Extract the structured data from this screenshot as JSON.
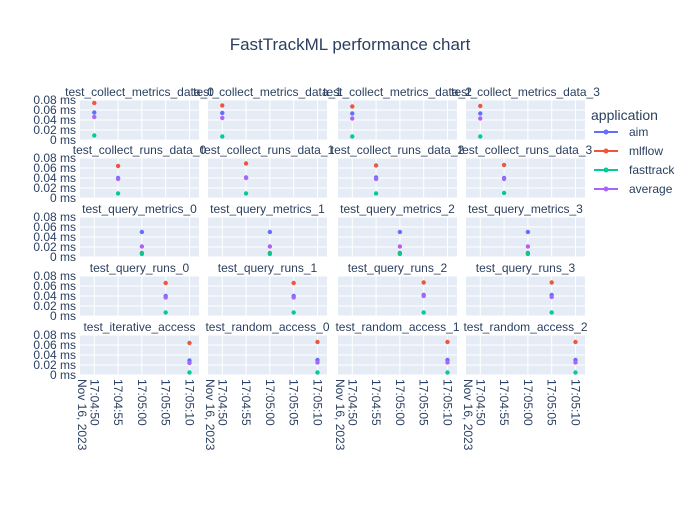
{
  "chart_data": {
    "type": "scatter",
    "title": "FastTrackML performance chart",
    "legend": {
      "title": "application",
      "placement": "top-right",
      "entries": [
        {
          "name": "aim",
          "color": "#636efa"
        },
        {
          "name": "mlflow",
          "color": "#ef553b"
        },
        {
          "name": "fasttrack",
          "color": "#00cc96"
        },
        {
          "name": "average",
          "color": "#ab63fa"
        }
      ]
    },
    "background": "#e5ecf6",
    "grid": true,
    "y_axis": {
      "range": [
        0,
        0.08
      ],
      "ticks": [
        "0 ms",
        "0.02 ms",
        "0.04 ms",
        "0.06 ms",
        "0.08 ms"
      ],
      "tick_values": [
        0,
        0.02,
        0.04,
        0.06,
        0.08
      ]
    },
    "x_axis": {
      "range": [
        "2023-11-16 17:04:47",
        "2023-11-16 17:05:12"
      ],
      "ticks": [
        "17:04:50",
        "17:04:55",
        "17:05:00",
        "17:05:05",
        "17:05:10"
      ],
      "tick_values": [
        "2023-11-16 17:04:50",
        "2023-11-16 17:04:55",
        "2023-11-16 17:05:00",
        "2023-11-16 17:05:05",
        "2023-11-16 17:05:10"
      ],
      "date_label": "Nov 16, 2023"
    },
    "panels": [
      {
        "title": "test_collect_metrics_data_0",
        "row": 0,
        "col": 0,
        "x": "2023-11-16 17:04:50",
        "values": {
          "aim": 0.055,
          "mlflow": 0.074,
          "fasttrack": 0.009,
          "average": 0.046
        }
      },
      {
        "title": "test_collect_metrics_data_1",
        "row": 0,
        "col": 1,
        "x": "2023-11-16 17:04:50",
        "values": {
          "aim": 0.054,
          "mlflow": 0.069,
          "fasttrack": 0.007,
          "average": 0.044
        }
      },
      {
        "title": "test_collect_metrics_data_2",
        "row": 0,
        "col": 2,
        "x": "2023-11-16 17:04:50",
        "values": {
          "aim": 0.053,
          "mlflow": 0.067,
          "fasttrack": 0.007,
          "average": 0.043
        }
      },
      {
        "title": "test_collect_metrics_data_3",
        "row": 0,
        "col": 3,
        "x": "2023-11-16 17:04:50",
        "values": {
          "aim": 0.053,
          "mlflow": 0.068,
          "fasttrack": 0.007,
          "average": 0.043
        }
      },
      {
        "title": "test_collect_runs_data_0",
        "row": 1,
        "col": 0,
        "x": "2023-11-16 17:04:55",
        "values": {
          "aim": 0.04,
          "mlflow": 0.064,
          "fasttrack": 0.009,
          "average": 0.038
        }
      },
      {
        "title": "test_collect_runs_data_1",
        "row": 1,
        "col": 1,
        "x": "2023-11-16 17:04:55",
        "values": {
          "aim": 0.041,
          "mlflow": 0.069,
          "fasttrack": 0.009,
          "average": 0.04
        }
      },
      {
        "title": "test_collect_runs_data_2",
        "row": 1,
        "col": 2,
        "x": "2023-11-16 17:04:55",
        "values": {
          "aim": 0.041,
          "mlflow": 0.065,
          "fasttrack": 0.009,
          "average": 0.038
        }
      },
      {
        "title": "test_collect_runs_data_3",
        "row": 1,
        "col": 3,
        "x": "2023-11-16 17:04:55",
        "values": {
          "aim": 0.04,
          "mlflow": 0.066,
          "fasttrack": 0.01,
          "average": 0.038
        }
      },
      {
        "title": "test_query_metrics_0",
        "row": 2,
        "col": 0,
        "x": "2023-11-16 17:05:00",
        "values": {
          "aim": 0.05,
          "mlflow": 0.008,
          "fasttrack": 0.006,
          "average": 0.021
        }
      },
      {
        "title": "test_query_metrics_1",
        "row": 2,
        "col": 1,
        "x": "2023-11-16 17:05:00",
        "values": {
          "aim": 0.05,
          "mlflow": 0.008,
          "fasttrack": 0.006,
          "average": 0.021
        }
      },
      {
        "title": "test_query_metrics_2",
        "row": 2,
        "col": 2,
        "x": "2023-11-16 17:05:00",
        "values": {
          "aim": 0.05,
          "mlflow": 0.008,
          "fasttrack": 0.006,
          "average": 0.021
        }
      },
      {
        "title": "test_query_metrics_3",
        "row": 2,
        "col": 3,
        "x": "2023-11-16 17:05:00",
        "values": {
          "aim": 0.05,
          "mlflow": 0.008,
          "fasttrack": 0.006,
          "average": 0.021
        }
      },
      {
        "title": "test_query_runs_0",
        "row": 3,
        "col": 0,
        "x": "2023-11-16 17:05:05",
        "values": {
          "aim": 0.04,
          "mlflow": 0.066,
          "fasttrack": 0.007,
          "average": 0.037
        }
      },
      {
        "title": "test_query_runs_1",
        "row": 3,
        "col": 1,
        "x": "2023-11-16 17:05:05",
        "values": {
          "aim": 0.04,
          "mlflow": 0.066,
          "fasttrack": 0.007,
          "average": 0.037
        }
      },
      {
        "title": "test_query_runs_2",
        "row": 3,
        "col": 2,
        "x": "2023-11-16 17:05:05",
        "values": {
          "aim": 0.042,
          "mlflow": 0.067,
          "fasttrack": 0.007,
          "average": 0.04
        }
      },
      {
        "title": "test_query_runs_3",
        "row": 3,
        "col": 3,
        "x": "2023-11-16 17:05:05",
        "values": {
          "aim": 0.042,
          "mlflow": 0.067,
          "fasttrack": 0.007,
          "average": 0.038
        }
      },
      {
        "title": "test_iterative_access",
        "row": 4,
        "col": 0,
        "x": "2023-11-16 17:05:10",
        "values": {
          "aim": 0.029,
          "mlflow": 0.064,
          "fasttrack": 0.005,
          "average": 0.024
        }
      },
      {
        "title": "test_random_access_0",
        "row": 4,
        "col": 1,
        "x": "2023-11-16 17:05:10",
        "values": {
          "aim": 0.03,
          "mlflow": 0.066,
          "fasttrack": 0.005,
          "average": 0.025
        }
      },
      {
        "title": "test_random_access_1",
        "row": 4,
        "col": 2,
        "x": "2023-11-16 17:05:10",
        "values": {
          "aim": 0.03,
          "mlflow": 0.066,
          "fasttrack": 0.005,
          "average": 0.025
        }
      },
      {
        "title": "test_random_access_2",
        "row": 4,
        "col": 3,
        "x": "2023-11-16 17:05:10",
        "values": {
          "aim": 0.03,
          "mlflow": 0.066,
          "fasttrack": 0.005,
          "average": 0.025
        }
      }
    ]
  }
}
